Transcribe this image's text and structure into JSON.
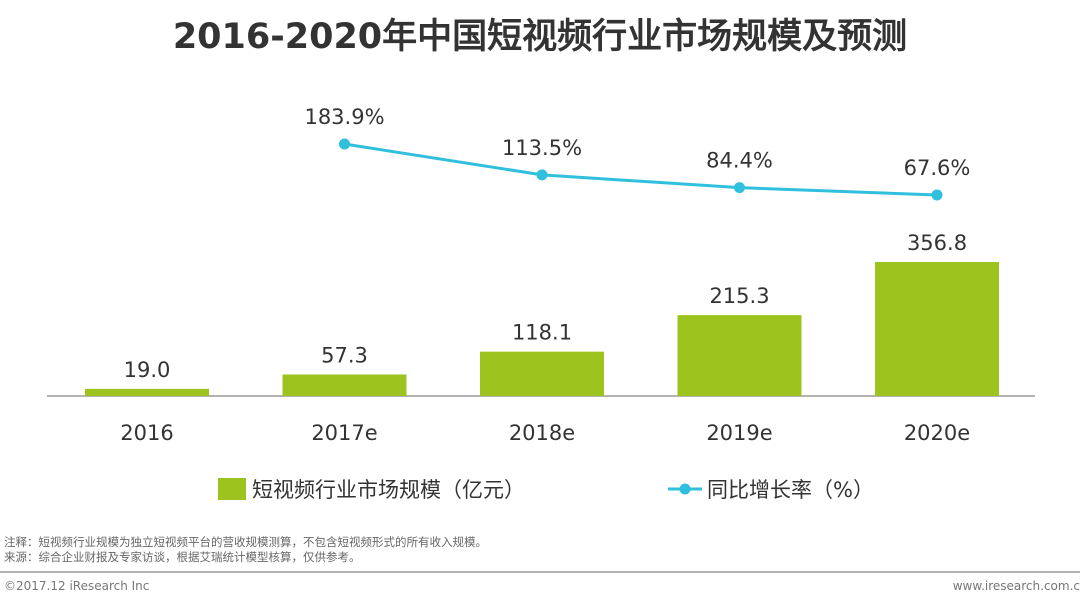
{
  "chart_data": {
    "type": "bar+line",
    "title": "2016-2020年中国短视频行业市场规模及预测",
    "categories": [
      "2016",
      "2017e",
      "2018e",
      "2019e",
      "2020e"
    ],
    "series": [
      {
        "name": "短视频行业市场规模（亿元）",
        "type": "bar",
        "color": "#9cc31e",
        "values": [
          19.0,
          57.3,
          118.1,
          215.3,
          356.8
        ],
        "labels": [
          "19.0",
          "57.3",
          "118.1",
          "215.3",
          "356.8"
        ]
      },
      {
        "name": "同比增长率（%）",
        "type": "line",
        "color": "#30bfdc",
        "values": [
          null,
          183.9,
          113.5,
          84.4,
          67.6
        ],
        "labels": [
          "",
          "183.9%",
          "113.5%",
          "84.4%",
          "67.6%"
        ]
      }
    ],
    "legend": "bottom",
    "grid": false
  },
  "notes": [
    "注释：短视频行业规模为独立短视频平台的营收规模测算，不包含短视频形式的所有收入规模。",
    "来源：综合企业财报及专家访谈，根据艾瑞统计模型核算，仅供参考。"
  ],
  "footer": {
    "copyright": "©2017.12 iResearch Inc",
    "url": "www.iresearch.com.c"
  }
}
